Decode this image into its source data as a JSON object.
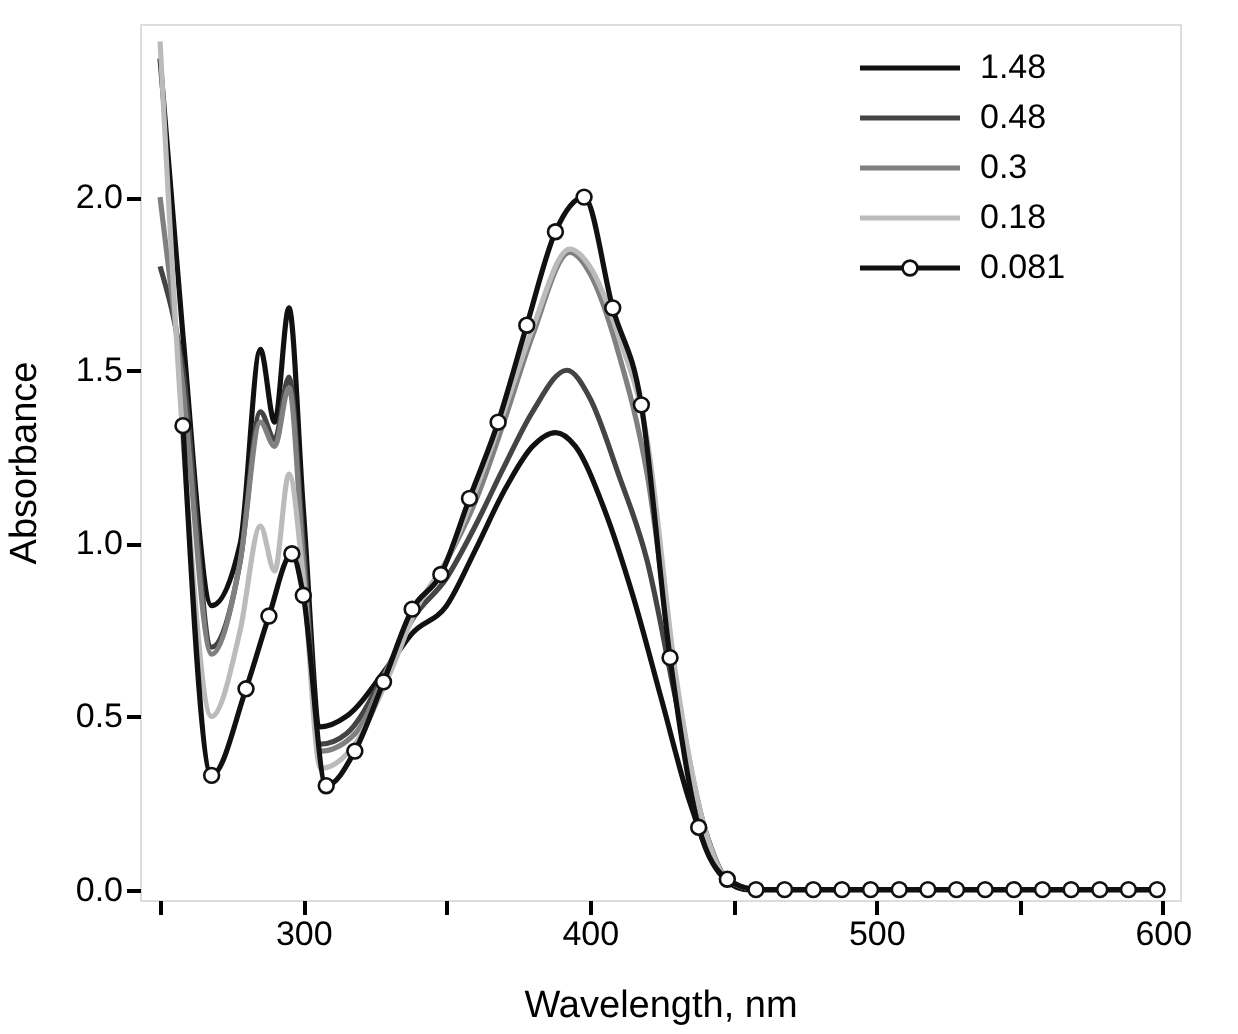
{
  "chart_data": {
    "type": "line",
    "xlabel": "Wavelength, nm",
    "ylabel": "Absorbance",
    "xlim": [
      243,
      606
    ],
    "ylim": [
      -0.03,
      2.5
    ],
    "xticks": [
      {
        "value": 250,
        "label": null
      },
      300,
      {
        "value": 350,
        "label": null
      },
      400,
      {
        "value": 450,
        "label": null
      },
      500,
      {
        "value": 550,
        "label": null
      },
      600
    ],
    "yticks": [
      {
        "value": 0,
        "label": "0.0"
      },
      0.5,
      {
        "value": 1,
        "label": "1.0"
      },
      1.5,
      {
        "value": 2,
        "label": "2.0"
      }
    ],
    "grid": false,
    "legend": "top right",
    "line_style": "solid",
    "series": [
      {
        "name": "1.48",
        "color": "#111111",
        "marker": "none",
        "x": [
          250,
          258,
          268,
          278,
          285,
          290,
          295,
          300,
          306,
          315,
          330,
          338,
          350,
          360,
          370,
          380,
          388,
          395,
          405,
          415,
          425,
          435,
          445,
          455,
          600
        ],
        "values": [
          2.4,
          1.6,
          0.82,
          1.0,
          1.56,
          1.35,
          1.68,
          1.1,
          0.47,
          0.5,
          0.65,
          0.74,
          0.82,
          0.98,
          1.15,
          1.28,
          1.32,
          1.28,
          1.1,
          0.85,
          0.55,
          0.25,
          0.05,
          0.0,
          0.0
        ]
      },
      {
        "name": "0.48",
        "color": "#444444",
        "marker": "none",
        "x": [
          250,
          258,
          268,
          278,
          285,
          290,
          295,
          300,
          306,
          315,
          330,
          338,
          350,
          360,
          370,
          380,
          392,
          400,
          410,
          420,
          430,
          440,
          448,
          458,
          600
        ],
        "values": [
          1.8,
          1.5,
          0.7,
          0.95,
          1.38,
          1.3,
          1.48,
          1.0,
          0.42,
          0.45,
          0.65,
          0.78,
          0.9,
          1.05,
          1.22,
          1.38,
          1.5,
          1.42,
          1.2,
          0.95,
          0.55,
          0.18,
          0.03,
          0.0,
          0.0
        ]
      },
      {
        "name": "0.3",
        "color": "#808080",
        "marker": "none",
        "x": [
          250,
          258,
          268,
          278,
          285,
          290,
          295,
          300,
          306,
          318,
          330,
          340,
          350,
          360,
          370,
          380,
          393,
          400,
          410,
          420,
          430,
          440,
          448,
          458,
          600
        ],
        "values": [
          2.0,
          1.45,
          0.68,
          0.95,
          1.35,
          1.28,
          1.45,
          0.95,
          0.4,
          0.45,
          0.65,
          0.82,
          0.95,
          1.12,
          1.35,
          1.6,
          1.84,
          1.78,
          1.55,
          1.2,
          0.6,
          0.18,
          0.03,
          0.0,
          0.0
        ]
      },
      {
        "name": "0.18",
        "color": "#bbbbbb",
        "marker": "none",
        "x": [
          250,
          258,
          268,
          278,
          285,
          290,
          295,
          300,
          306,
          318,
          330,
          340,
          350,
          360,
          370,
          380,
          393,
          400,
          410,
          420,
          430,
          440,
          448,
          458,
          600
        ],
        "values": [
          2.45,
          1.3,
          0.5,
          0.75,
          1.05,
          0.92,
          1.2,
          0.9,
          0.35,
          0.42,
          0.62,
          0.82,
          0.95,
          1.15,
          1.38,
          1.62,
          1.85,
          1.8,
          1.6,
          1.3,
          0.62,
          0.18,
          0.03,
          0.0,
          0.0
        ]
      },
      {
        "name": "0.081",
        "color": "#111111",
        "marker": "circle",
        "x": [
          258,
          268,
          280,
          288,
          296,
          300,
          308,
          318,
          328,
          338,
          348,
          358,
          368,
          378,
          388,
          398,
          408,
          418,
          428,
          438,
          448,
          458,
          468,
          478,
          488,
          498,
          508,
          518,
          528,
          538,
          548,
          558,
          568,
          578,
          588,
          598
        ],
        "values": [
          1.34,
          0.33,
          0.58,
          0.79,
          0.97,
          0.85,
          0.3,
          0.4,
          0.6,
          0.81,
          0.91,
          1.13,
          1.35,
          1.63,
          1.9,
          2.0,
          1.68,
          1.4,
          0.67,
          0.18,
          0.03,
          0.0,
          0.0,
          0.0,
          0.0,
          0.0,
          0.0,
          0.0,
          0.0,
          0.0,
          0.0,
          0.0,
          0.0,
          0.0,
          0.0,
          0.0
        ]
      }
    ]
  }
}
